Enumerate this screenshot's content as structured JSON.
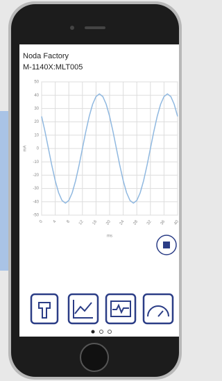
{
  "app": {
    "title": "Noda Factory",
    "subtitle": "M-1140X:MLT005"
  },
  "chart_data": {
    "type": "line",
    "x": [
      0,
      1,
      2,
      3,
      4,
      5,
      6,
      7,
      8,
      9,
      10,
      11,
      12,
      13,
      14,
      15,
      16,
      17,
      18,
      19,
      20,
      21,
      22,
      23,
      24,
      25,
      26,
      27,
      28,
      29,
      30,
      31,
      32,
      33,
      34,
      35,
      36,
      37,
      38,
      39,
      40
    ],
    "series": [
      {
        "name": "mA",
        "color": "#8fb8e0",
        "values": [
          24.1,
          12.7,
          0,
          -12.7,
          -24.1,
          -33.2,
          -39,
          -41,
          -39,
          -33.2,
          -24.1,
          -12.7,
          0,
          12.7,
          24.1,
          33.2,
          39,
          41,
          39,
          33.2,
          24.1,
          12.7,
          0,
          -12.7,
          -24.1,
          -33.2,
          -39,
          -41,
          -39,
          -33.2,
          -24.1,
          -12.7,
          0,
          12.7,
          24.1,
          33.2,
          39,
          41,
          39,
          33.2,
          24.1
        ]
      }
    ],
    "x_label": "ms",
    "y_label": "mA",
    "xlim": [
      0,
      40
    ],
    "xticks": [
      0,
      4,
      8,
      12,
      16,
      20,
      24,
      28,
      32,
      36,
      40
    ],
    "ylim": [
      -50,
      50
    ],
    "yticks": [
      50,
      40,
      30,
      20,
      10,
      0,
      -10,
      -20,
      -30,
      -40,
      -50
    ],
    "grid": true
  }
}
